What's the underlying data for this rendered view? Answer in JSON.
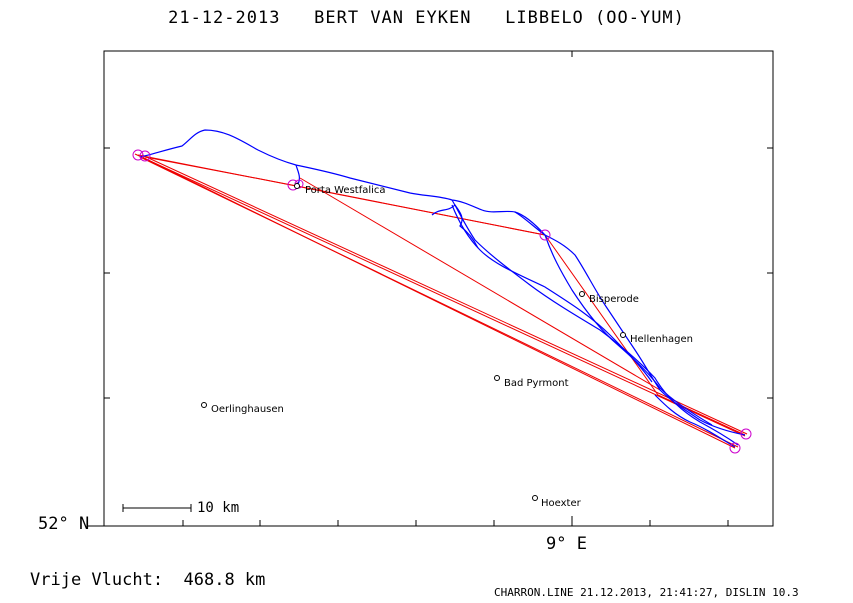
{
  "title": "21-12-2013   BERT VAN EYKEN   LIBBELO (OO-YUM)",
  "axis": {
    "lat_label": "52° N",
    "lon_label": "9° E"
  },
  "scale_bar": {
    "label": "10 km"
  },
  "footer": {
    "distance": "Vrije Vlucht:  468.8 km",
    "credit": "CHARRON.LINE 21.12.2013, 21:41:27, DISLIN 10.3"
  },
  "places": [
    {
      "name": "Porta Westfalica"
    },
    {
      "name": "Bisperode"
    },
    {
      "name": "Hellenhagen"
    },
    {
      "name": "Bad Pyrmont"
    },
    {
      "name": "Oerlinghausen"
    },
    {
      "name": "Hoexter"
    }
  ],
  "colors": {
    "track": "#0000ff",
    "legs": "#ff0000",
    "turnpoints": "#cc00cc"
  }
}
